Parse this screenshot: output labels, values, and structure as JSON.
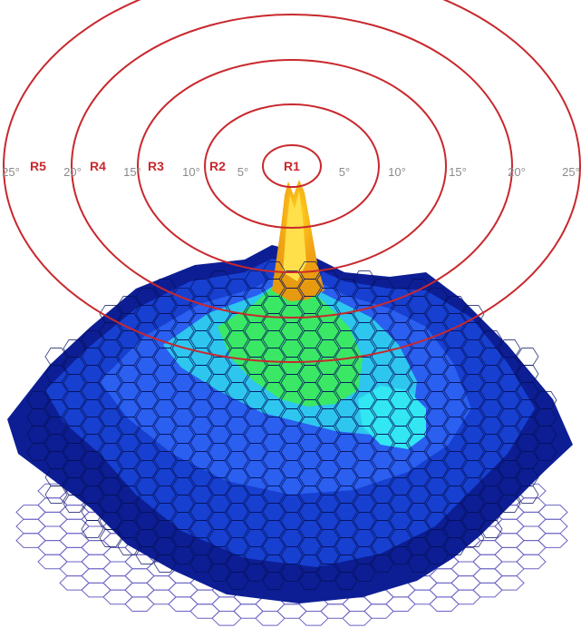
{
  "rings": [
    {
      "label": "R1"
    },
    {
      "label": "R2"
    },
    {
      "label": "R3"
    },
    {
      "label": "R4"
    },
    {
      "label": "R5"
    }
  ],
  "degree_ticks": {
    "left": [
      "25°",
      "20°",
      "15°",
      "10°",
      "5°"
    ],
    "right": [
      "5°",
      "10°",
      "15°",
      "20°",
      "25°"
    ]
  },
  "colors": {
    "ring": "#c8282d",
    "ring_label": "#c8282d",
    "tick_label": "#8a8a8a",
    "hex_outline": "#6b63c4",
    "surface_dark": "#0a1a8a",
    "surface_mid": "#1f4fe0",
    "surface_cyan": "#28d9f0",
    "surface_green": "#3cf05a",
    "surface_yellow": "#ffd21e",
    "surface_orange": "#f2a414"
  }
}
